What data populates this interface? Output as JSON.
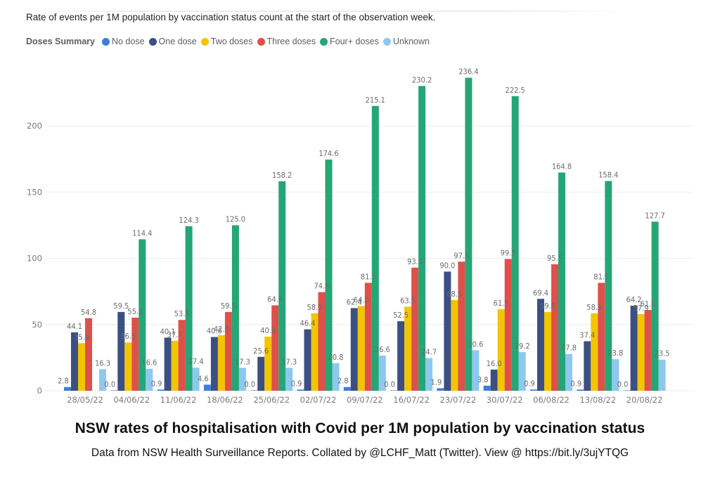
{
  "header": {
    "subtitle": "Rate of events per 1M population by vaccination status count at the start of the observation week."
  },
  "caption": {
    "title": "NSW rates of hospitalisation with Covid per 1M population by vaccination status",
    "source": "Data from NSW Health Surveillance Reports. Collated by @LCHF_Matt (Twitter). View @ https://bit.ly/3ujYTQG"
  },
  "chart_data": {
    "type": "bar",
    "title": "Rate of events per 1M population by vaccination status count at the start of the observation week.",
    "xlabel": "",
    "ylabel": "",
    "ylim": [
      0,
      250
    ],
    "yticks": [
      0,
      50,
      100,
      150,
      200
    ],
    "grid": true,
    "legend_title": "Doses Summary",
    "legend_position": "top-left",
    "categories": [
      "28/05/22",
      "04/06/22",
      "11/06/22",
      "18/06/22",
      "25/06/22",
      "02/07/22",
      "09/07/22",
      "16/07/22",
      "23/07/22",
      "30/07/22",
      "06/08/22",
      "13/08/22",
      "20/08/22"
    ],
    "series": [
      {
        "name": "No dose",
        "color": "#3d7fd6",
        "values": [
          2.8,
          0.0,
          0.9,
          4.6,
          0.0,
          0.9,
          2.8,
          0.0,
          1.9,
          3.8,
          0.9,
          0.9,
          0.0
        ]
      },
      {
        "name": "One dose",
        "color": "#3b4f82",
        "values": [
          44.1,
          59.5,
          40.1,
          40.6,
          25.6,
          46.4,
          62.4,
          52.5,
          90.0,
          16.0,
          69.4,
          37.4,
          64.2
        ]
      },
      {
        "name": "Two doses",
        "color": "#f2c500",
        "values": [
          35.9,
          36.5,
          37.7,
          42.0,
          40.9,
          58.5,
          64.0,
          63.5,
          68.5,
          61.5,
          59.5,
          58.5,
          57.9
        ]
      },
      {
        "name": "Three doses",
        "color": "#e0504a",
        "values": [
          54.8,
          55.2,
          53.5,
          59.5,
          64.5,
          74.5,
          81.5,
          93.0,
          97.5,
          99.5,
          95.5,
          81.5,
          61.0
        ]
      },
      {
        "name": "Four+ doses",
        "color": "#24a677",
        "values": [
          null,
          114.4,
          124.3,
          125.0,
          158.2,
          174.6,
          215.1,
          230.2,
          236.4,
          222.5,
          164.8,
          158.4,
          127.7
        ]
      },
      {
        "name": "Unknown",
        "color": "#8ec8ee",
        "values": [
          16.3,
          16.6,
          17.4,
          17.3,
          17.3,
          20.8,
          26.6,
          24.7,
          30.6,
          29.2,
          27.8,
          23.8,
          23.5
        ]
      }
    ]
  }
}
